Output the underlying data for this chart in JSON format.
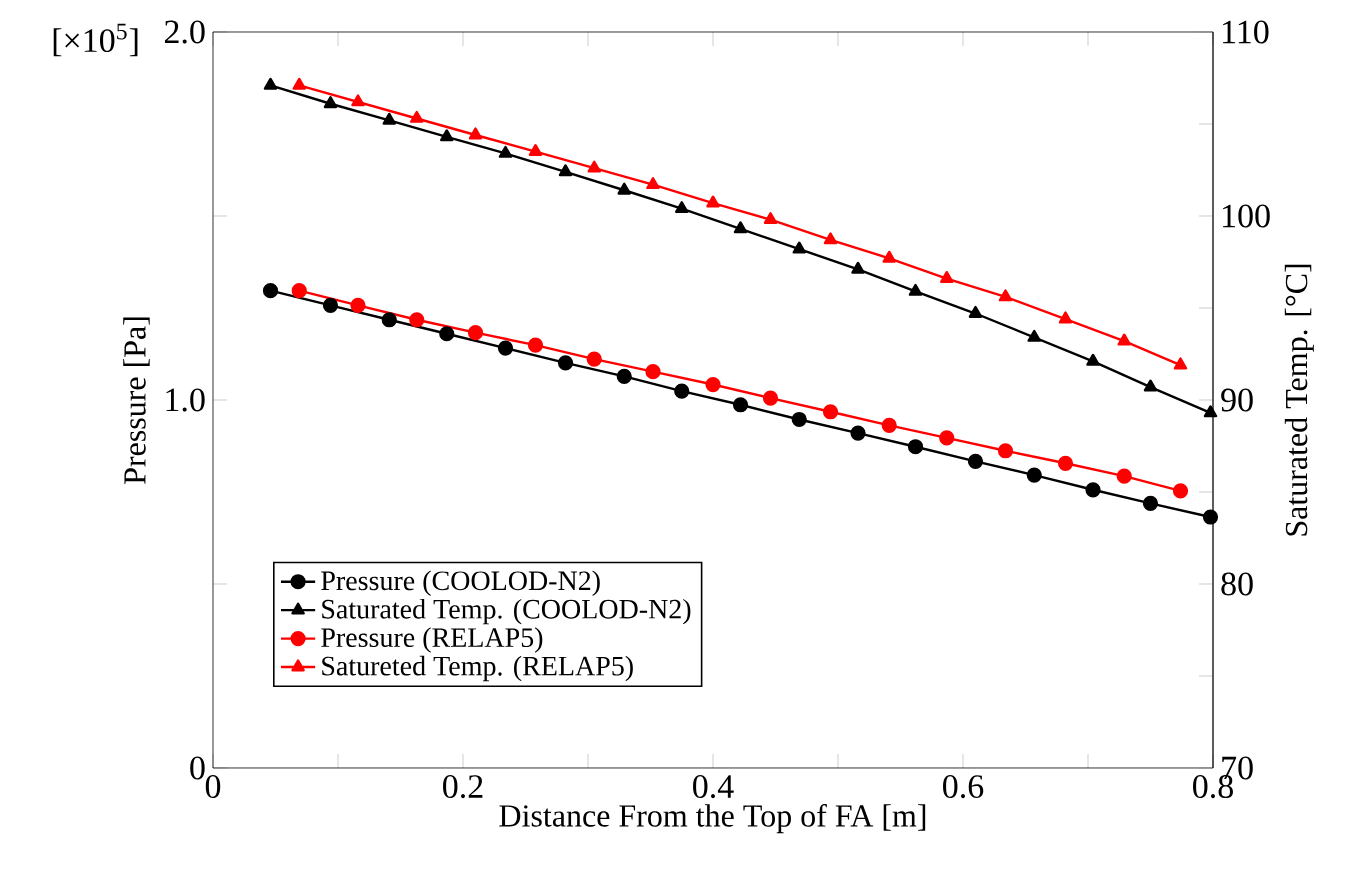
{
  "chart_data": {
    "type": "line",
    "xlabel": "Distance From the Top of FA [m]",
    "ylabel": "Pressure [Pa]",
    "y2label": "Saturated Temp. [°C]",
    "annotations": [
      "[×10$^{5}$]"
    ],
    "xlim": [
      0,
      0.8
    ],
    "xticks": [
      {
        "value": 0,
        "label": "0"
      },
      {
        "value": 0.1,
        "label": null
      },
      0.2,
      {
        "value": 0.3,
        "label": null
      },
      0.4,
      {
        "value": 0.5,
        "label": null
      },
      0.6,
      {
        "value": 0.7,
        "label": null
      },
      0.8
    ],
    "ylim": [
      0,
      2.0
    ],
    "yticks": [
      {
        "value": 0,
        "label": "0"
      },
      {
        "value": 0.5,
        "label": null
      },
      {
        "value": 1.0,
        "label": "1.0"
      },
      {
        "value": 1.5,
        "label": null
      },
      {
        "value": 2.0,
        "label": "2.0"
      }
    ],
    "y2lim": [
      70,
      110
    ],
    "y2ticks": [
      70,
      {
        "value": 75,
        "label": null
      },
      80,
      {
        "value": 85,
        "label": null
      },
      90,
      {
        "value": 95,
        "label": null
      },
      100,
      {
        "value": 105,
        "label": null
      },
      110
    ],
    "legend": "bottom left",
    "series": [
      {
        "name": "Pressure (COOLOD-N2)",
        "color": "#000000",
        "marker": "circle",
        "x": [
          0.046,
          0.094,
          0.141,
          0.187,
          0.234,
          0.282,
          0.329,
          0.375,
          0.422,
          0.469,
          0.516,
          0.562,
          0.61,
          0.657,
          0.704,
          0.75,
          0.798
        ],
        "values": [
          1.297,
          1.257,
          1.218,
          1.18,
          1.141,
          1.101,
          1.064,
          1.024,
          0.987,
          0.947,
          0.91,
          0.873,
          0.833,
          0.796,
          0.756,
          0.719,
          0.682
        ]
      },
      {
        "name": "Saturated Temp. (COOLOD-N2)",
        "color": "#000000",
        "marker": "triangle",
        "axis": "y2",
        "x": [
          0.046,
          0.094,
          0.141,
          0.187,
          0.234,
          0.282,
          0.329,
          0.375,
          0.422,
          0.469,
          0.516,
          0.562,
          0.61,
          0.657,
          0.704,
          0.75,
          0.798
        ],
        "values": [
          107.1,
          106.1,
          105.2,
          104.3,
          103.4,
          102.4,
          101.4,
          100.4,
          99.3,
          98.2,
          97.1,
          95.9,
          94.7,
          93.4,
          92.1,
          90.7,
          89.3
        ]
      },
      {
        "name": "Pressure (RELAP5)",
        "color": "#ff0000",
        "marker": "circle",
        "x": [
          0.069,
          0.116,
          0.163,
          0.21,
          0.258,
          0.305,
          0.352,
          0.4,
          0.446,
          0.494,
          0.541,
          0.587,
          0.634,
          0.682,
          0.729,
          0.774
        ],
        "values": [
          1.297,
          1.257,
          1.218,
          1.183,
          1.149,
          1.111,
          1.077,
          1.042,
          1.005,
          0.968,
          0.931,
          0.897,
          0.862,
          0.828,
          0.793,
          0.753
        ]
      },
      {
        "name": "Satureted Temp. (RELAP5)",
        "color": "#ff0000",
        "marker": "triangle",
        "axis": "y2",
        "x": [
          0.069,
          0.116,
          0.163,
          0.21,
          0.258,
          0.305,
          0.352,
          0.4,
          0.446,
          0.494,
          0.541,
          0.587,
          0.634,
          0.682,
          0.729,
          0.774
        ],
        "values": [
          107.1,
          106.2,
          105.3,
          104.4,
          103.5,
          102.6,
          101.7,
          100.7,
          99.8,
          98.7,
          97.7,
          96.6,
          95.6,
          94.4,
          93.2,
          91.9
        ]
      }
    ]
  }
}
